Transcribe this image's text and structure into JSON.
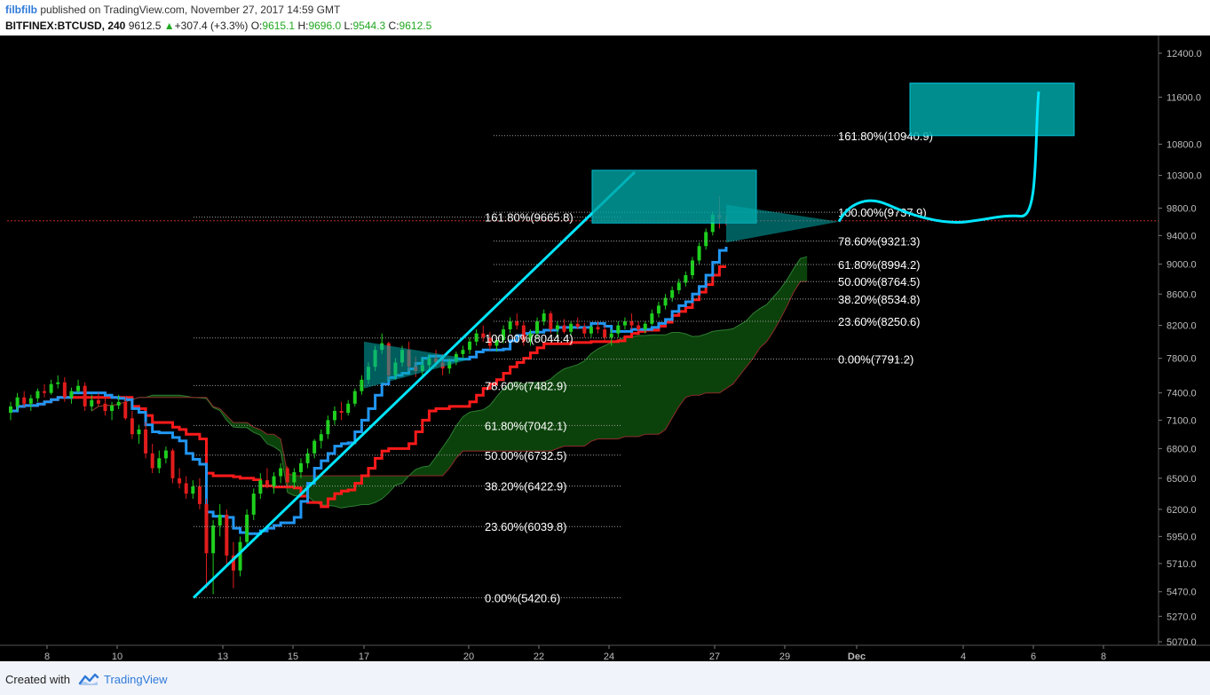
{
  "header": {
    "author": "filbfilb",
    "published_text": "published on TradingView.com, November 27, 2017 14:59 GMT",
    "symbol": "BITFINEX:BTCUSD, 240",
    "price": "9612.5",
    "change": "+307.4 (+3.3%)",
    "o_label": "O:",
    "o_val": "9615.1",
    "h_label": "H:",
    "h_val": "9696.0",
    "l_label": "L:",
    "l_val": "9544.3",
    "c_label": "C:",
    "c_val": "9612.5"
  },
  "footer": {
    "created_with": "Created with",
    "brand": "TradingView"
  },
  "colors": {
    "background": "#000000",
    "candle_up": "#1ecf1e",
    "candle_down": "#e11c1c",
    "conversion_line": "#2196f3",
    "base_line": "#ff1a1a",
    "cloud_bull": "#0d4d0d",
    "cloud_bear": "#5a0d0d",
    "annotation": "#00e5ff",
    "box_fill": "#00a6a6"
  },
  "chart_data": {
    "type": "candlestick",
    "y_scale": "log",
    "ylim": [
      5070,
      12800
    ],
    "y_ticks": [
      12400.0,
      11600.0,
      10800.0,
      10300.0,
      9800.0,
      9400.0,
      9000.0,
      8600.0,
      8200.0,
      7800.0,
      7400.0,
      7100.0,
      6800.0,
      6500.0,
      6200.0,
      5950.0,
      5710.0,
      5470.0,
      5270.0,
      5070.0
    ],
    "x_ticks": [
      "8",
      "10",
      "13",
      "15",
      "17",
      "20",
      "22",
      "24",
      "27",
      "29",
      "Dec",
      "4",
      "6",
      "8"
    ],
    "current_price": 9612.5,
    "fib_left": [
      {
        "label": "161.80%(9665.8)",
        "value": 9665.8
      },
      {
        "label": "100.00%(8044.4)",
        "value": 8044.4
      },
      {
        "label": "78.60%(7482.9)",
        "value": 7482.9
      },
      {
        "label": "61.80%(7042.1)",
        "value": 7042.1
      },
      {
        "label": "50.00%(6732.5)",
        "value": 6732.5
      },
      {
        "label": "38.20%(6422.9)",
        "value": 6422.9
      },
      {
        "label": "23.60%(6039.8)",
        "value": 6039.8
      },
      {
        "label": "0.00%(5420.6)",
        "value": 5420.6
      }
    ],
    "fib_right": [
      {
        "label": "161.80%(10940.9)",
        "value": 10940.9
      },
      {
        "label": "100.00%(9737.9)",
        "value": 9737.9
      },
      {
        "label": "78.60%(9321.3)",
        "value": 9321.3
      },
      {
        "label": "61.80%(8994.2)",
        "value": 8994.2
      },
      {
        "label": "50.00%(8764.5)",
        "value": 8764.5
      },
      {
        "label": "38.20%(8534.8)",
        "value": 8534.8
      },
      {
        "label": "23.60%(8250.6)",
        "value": 8250.6
      },
      {
        "label": "0.00%(7791.2)",
        "value": 7791.2
      }
    ],
    "candles": [
      [
        7180,
        7300,
        7100,
        7250
      ],
      [
        7250,
        7400,
        7200,
        7350
      ],
      [
        7350,
        7420,
        7250,
        7280
      ],
      [
        7280,
        7380,
        7200,
        7340
      ],
      [
        7340,
        7450,
        7300,
        7420
      ],
      [
        7420,
        7500,
        7350,
        7400
      ],
      [
        7400,
        7550,
        7380,
        7500
      ],
      [
        7500,
        7600,
        7450,
        7520
      ],
      [
        7520,
        7580,
        7300,
        7350
      ],
      [
        7350,
        7460,
        7280,
        7420
      ],
      [
        7420,
        7550,
        7400,
        7480
      ],
      [
        7480,
        7520,
        7200,
        7250
      ],
      [
        7250,
        7380,
        7200,
        7320
      ],
      [
        7320,
        7400,
        7250,
        7280
      ],
      [
        7280,
        7350,
        7150,
        7200
      ],
      [
        7200,
        7300,
        7100,
        7260
      ],
      [
        7260,
        7380,
        7220,
        7300
      ],
      [
        7300,
        7360,
        7100,
        7120
      ],
      [
        7120,
        7200,
        6900,
        6950
      ],
      [
        6950,
        7050,
        6850,
        7000
      ],
      [
        7000,
        7080,
        6700,
        6750
      ],
      [
        6750,
        6850,
        6550,
        6600
      ],
      [
        6600,
        6780,
        6550,
        6700
      ],
      [
        6700,
        6820,
        6650,
        6780
      ],
      [
        6780,
        6800,
        6450,
        6500
      ],
      [
        6500,
        6600,
        6400,
        6450
      ],
      [
        6450,
        6520,
        6300,
        6350
      ],
      [
        6350,
        6480,
        6300,
        6420
      ],
      [
        6420,
        6500,
        6200,
        6250
      ],
      [
        6250,
        6300,
        5500,
        5800
      ],
      [
        5800,
        6100,
        5450,
        6050
      ],
      [
        6050,
        6250,
        5950,
        6150
      ],
      [
        6150,
        6200,
        5700,
        5780
      ],
      [
        5780,
        5900,
        5500,
        5650
      ],
      [
        5650,
        5950,
        5600,
        5900
      ],
      [
        5900,
        6200,
        5850,
        6150
      ],
      [
        6150,
        6400,
        6100,
        6350
      ],
      [
        6350,
        6550,
        6300,
        6480
      ],
      [
        6480,
        6600,
        6400,
        6420
      ],
      [
        6420,
        6560,
        6350,
        6520
      ],
      [
        6520,
        6650,
        6450,
        6600
      ],
      [
        6600,
        6620,
        6420,
        6460
      ],
      [
        6460,
        6600,
        6400,
        6560
      ],
      [
        6560,
        6700,
        6500,
        6650
      ],
      [
        6650,
        6800,
        6600,
        6750
      ],
      [
        6750,
        6900,
        6700,
        6880
      ],
      [
        6880,
        7000,
        6800,
        6950
      ],
      [
        6950,
        7150,
        6900,
        7100
      ],
      [
        7100,
        7250,
        7050,
        7200
      ],
      [
        7200,
        7300,
        7100,
        7180
      ],
      [
        7180,
        7320,
        7150,
        7280
      ],
      [
        7280,
        7450,
        7250,
        7420
      ],
      [
        7420,
        7600,
        7380,
        7550
      ],
      [
        7550,
        7750,
        7500,
        7700
      ],
      [
        7700,
        7950,
        7650,
        7900
      ],
      [
        7900,
        8100,
        7850,
        7980
      ],
      [
        7980,
        8000,
        7550,
        7600
      ],
      [
        7600,
        7800,
        7550,
        7750
      ],
      [
        7750,
        7950,
        7700,
        7900
      ],
      [
        7900,
        8000,
        7650,
        7700
      ],
      [
        7700,
        7820,
        7580,
        7650
      ],
      [
        7650,
        7800,
        7600,
        7720
      ],
      [
        7720,
        7850,
        7650,
        7800
      ],
      [
        7800,
        7900,
        7700,
        7750
      ],
      [
        7750,
        7850,
        7600,
        7680
      ],
      [
        7680,
        7800,
        7620,
        7760
      ],
      [
        7760,
        7880,
        7720,
        7850
      ],
      [
        7850,
        7950,
        7800,
        7900
      ],
      [
        7900,
        8050,
        7850,
        8000
      ],
      [
        8000,
        8150,
        7950,
        8100
      ],
      [
        8100,
        8200,
        8000,
        8050
      ],
      [
        8050,
        8120,
        7900,
        7950
      ],
      [
        7950,
        8050,
        7880,
        8020
      ],
      [
        8020,
        8200,
        7980,
        8150
      ],
      [
        8150,
        8300,
        8100,
        8250
      ],
      [
        8250,
        8350,
        8150,
        8200
      ],
      [
        8200,
        8250,
        7950,
        8000
      ],
      [
        8000,
        8150,
        7950,
        8100
      ],
      [
        8100,
        8300,
        8050,
        8250
      ],
      [
        8250,
        8400,
        8200,
        8350
      ],
      [
        8350,
        8380,
        8100,
        8150
      ],
      [
        8150,
        8250,
        8050,
        8200
      ],
      [
        8200,
        8280,
        8100,
        8120
      ],
      [
        8120,
        8250,
        8080,
        8220
      ],
      [
        8220,
        8300,
        8150,
        8180
      ],
      [
        8180,
        8230,
        8050,
        8100
      ],
      [
        8100,
        8200,
        8050,
        8180
      ],
      [
        8180,
        8250,
        8100,
        8150
      ],
      [
        8150,
        8200,
        8000,
        8050
      ],
      [
        8050,
        8150,
        7950,
        8100
      ],
      [
        8100,
        8250,
        8050,
        8200
      ],
      [
        8200,
        8300,
        8150,
        8250
      ],
      [
        8250,
        8350,
        8150,
        8200
      ],
      [
        8200,
        8250,
        8100,
        8150
      ],
      [
        8150,
        8250,
        8100,
        8220
      ],
      [
        8220,
        8400,
        8200,
        8350
      ],
      [
        8350,
        8500,
        8300,
        8450
      ],
      [
        8450,
        8600,
        8400,
        8550
      ],
      [
        8550,
        8700,
        8500,
        8650
      ],
      [
        8650,
        8800,
        8600,
        8750
      ],
      [
        8750,
        8900,
        8700,
        8850
      ],
      [
        8850,
        9100,
        8800,
        9050
      ],
      [
        9050,
        9300,
        9000,
        9250
      ],
      [
        9250,
        9500,
        9200,
        9450
      ],
      [
        9450,
        9750,
        9400,
        9700
      ],
      [
        9700,
        9980,
        9500,
        9650
      ],
      [
        9615,
        9696,
        9544,
        9612
      ]
    ]
  }
}
